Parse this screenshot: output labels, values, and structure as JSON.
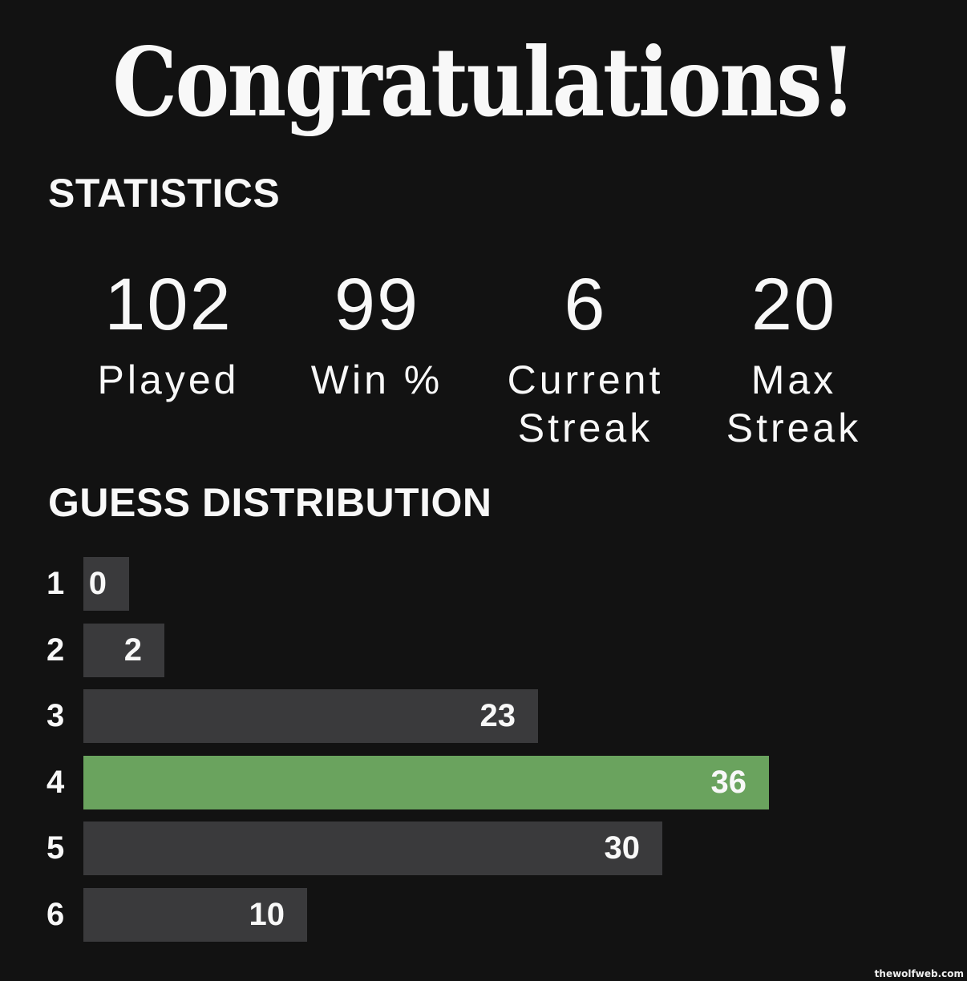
{
  "title": "Congratulations!",
  "statistics_heading": "STATISTICS",
  "stats": [
    {
      "value": "102",
      "label": "Played"
    },
    {
      "value": "99",
      "label": "Win %"
    },
    {
      "value": "6",
      "label": "Current Streak"
    },
    {
      "value": "20",
      "label": "Max Streak"
    }
  ],
  "distribution_heading": "GUESS DISTRIBUTION",
  "distribution": [
    {
      "guess": "1",
      "count": 0
    },
    {
      "guess": "2",
      "count": 2
    },
    {
      "guess": "3",
      "count": 23
    },
    {
      "guess": "4",
      "count": 36,
      "highlight": true
    },
    {
      "guess": "5",
      "count": 30
    },
    {
      "guess": "6",
      "count": 10
    }
  ],
  "colors": {
    "background": "#121212",
    "bar": "#3a3a3c",
    "highlight": "#6aa35e"
  },
  "watermark": "thewolfweb.com"
}
